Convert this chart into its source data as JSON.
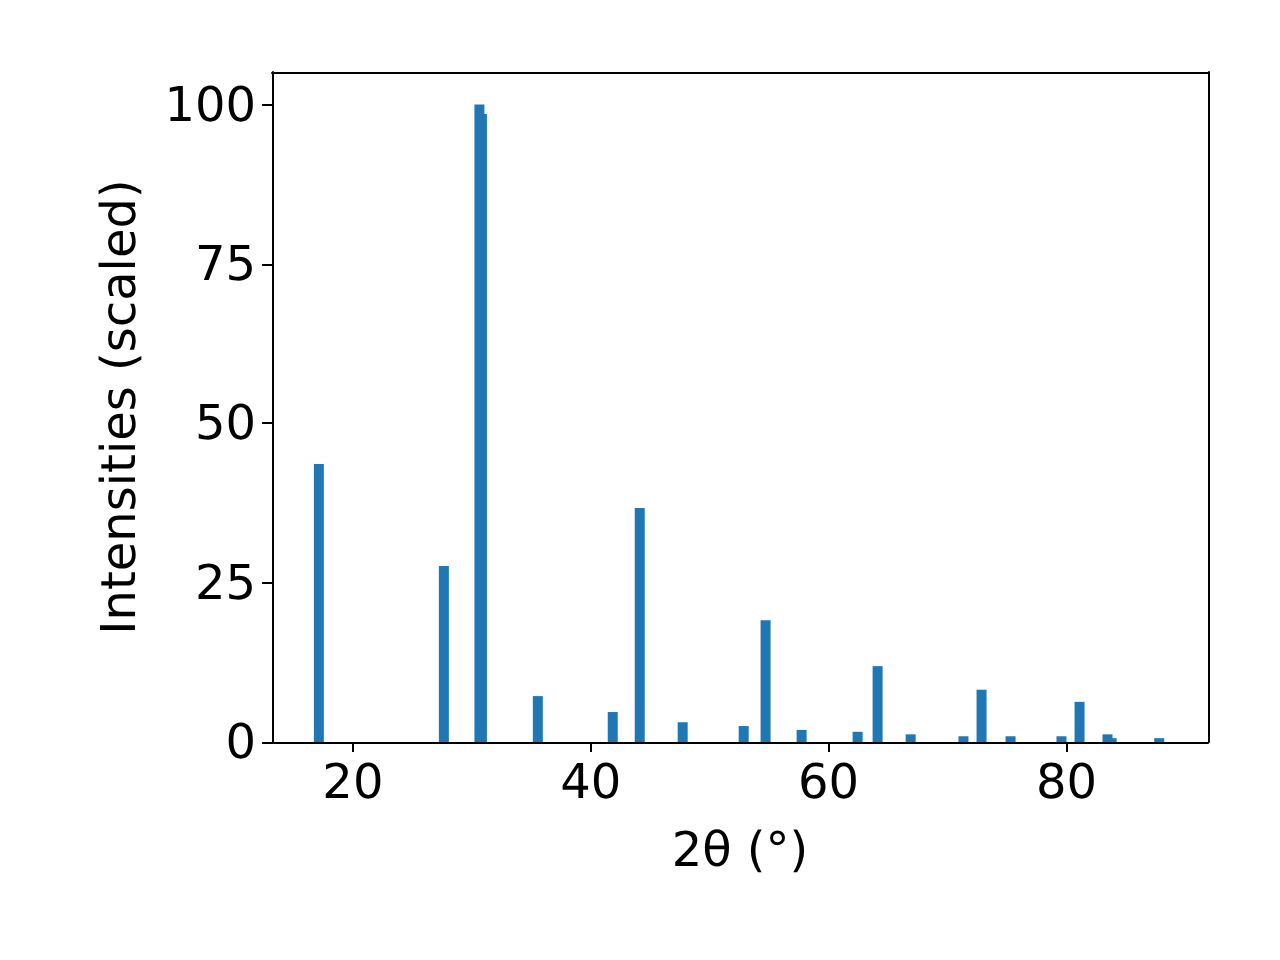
{
  "chart_data": {
    "type": "bar",
    "xlabel": "2θ (°)",
    "ylabel": "Intensities (scaled)",
    "x": [
      17.14,
      27.65,
      30.64,
      30.85,
      35.55,
      41.85,
      44.12,
      47.73,
      52.86,
      54.7,
      57.73,
      62.44,
      64.12,
      66.9,
      71.34,
      72.86,
      75.3,
      79.58,
      81.1,
      83.45,
      83.8,
      87.8
    ],
    "values": [
      43.6,
      27.6,
      100,
      98.5,
      7.2,
      4.7,
      36.7,
      3.1,
      2.5,
      19.1,
      1.9,
      1.6,
      11.9,
      1.2,
      0.9,
      8.2,
      0.9,
      0.9,
      6.3,
      1.2,
      0.6,
      0.6
    ],
    "color": "#1f77b4",
    "xlim": [
      13.2,
      91.9
    ],
    "xticks": [
      20,
      40,
      60,
      80
    ],
    "ylim": [
      0,
      105.1
    ],
    "yticks": [
      0,
      25,
      50,
      75,
      100
    ],
    "grid": false
  }
}
